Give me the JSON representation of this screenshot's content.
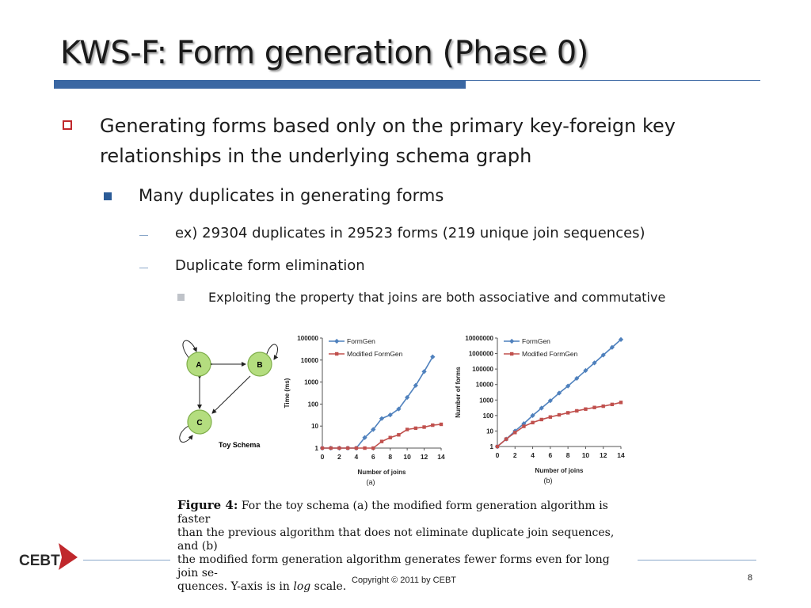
{
  "slide": {
    "title": "KWS-F: Form generation (Phase 0)",
    "bullets": {
      "b1_line1": "Generating forms based only on the primary key-foreign key",
      "b1_line2": "relationships in the underlying schema graph",
      "b2": "Many duplicates in generating forms",
      "b3": "ex) 29304 duplicates in 29523 forms (219 unique join sequences)",
      "b4": "Duplicate form elimination",
      "b5": "Exploiting the property that joins are both associative and commutative"
    },
    "footer": {
      "logo": "CEBT",
      "copyright": "Copyright © 2011 by CEBT",
      "page": "8"
    }
  },
  "figure": {
    "schema": {
      "node_a": "A",
      "node_b": "B",
      "node_c": "C",
      "label": "Toy Schema"
    },
    "caption": {
      "bold": "Figure 4:",
      "line1": "For the toy schema (a) the modified form generation algorithm is faster",
      "line2": "than the previous algorithm that does not eliminate duplicate join sequences, and (b)",
      "line3": "the modified form generation algorithm generates fewer forms even for long join se-",
      "line4_a": "quences. Y-axis is in",
      "line4_log": "log",
      "line4_b": "scale."
    }
  },
  "chart_data": [
    {
      "type": "line",
      "panel_label": "(a)",
      "xlabel": "Number of joins",
      "ylabel": "Time (ms)",
      "yscale": "log",
      "ylim": [
        1,
        100000
      ],
      "xlim": [
        0,
        14
      ],
      "xticks": [
        "0",
        "2",
        "4",
        "6",
        "8",
        "10",
        "12",
        "14"
      ],
      "yticks": [
        "1",
        "10",
        "100",
        "1000",
        "10000",
        "100000"
      ],
      "legend": "top-left",
      "series": [
        {
          "name": "FormGen",
          "color": "#4f81bd",
          "x": [
            0,
            1,
            2,
            3,
            4,
            5,
            6,
            7,
            8,
            9,
            10,
            11,
            12,
            13,
            14
          ],
          "values": [
            1,
            1,
            1,
            1,
            1,
            3,
            7,
            22,
            32,
            60,
            200,
            700,
            3000,
            14000,
            null
          ]
        },
        {
          "name": "Modified FormGen",
          "color": "#c0504d",
          "x": [
            0,
            1,
            2,
            3,
            4,
            5,
            6,
            7,
            8,
            9,
            10,
            11,
            12,
            13,
            14
          ],
          "values": [
            1,
            1,
            1,
            1,
            1,
            1,
            1,
            2,
            3,
            4,
            7,
            8,
            9,
            11,
            12
          ]
        }
      ]
    },
    {
      "type": "line",
      "panel_label": "(b)",
      "xlabel": "Number of joins",
      "ylabel": "Number of forms",
      "yscale": "log",
      "ylim": [
        1,
        10000000
      ],
      "xlim": [
        0,
        14
      ],
      "xticks": [
        "0",
        "2",
        "4",
        "6",
        "8",
        "10",
        "12",
        "14"
      ],
      "yticks": [
        "1",
        "10",
        "100",
        "1000",
        "10000",
        "100000",
        "1000000",
        "10000000"
      ],
      "legend": "top-left",
      "series": [
        {
          "name": "FormGen",
          "color": "#4f81bd",
          "x": [
            0,
            1,
            2,
            3,
            4,
            5,
            6,
            7,
            8,
            9,
            10,
            11,
            12,
            13,
            14
          ],
          "values": [
            1,
            3,
            10,
            30,
            100,
            300,
            900,
            2800,
            8000,
            25000,
            80000,
            250000,
            800000,
            2500000,
            8000000
          ]
        },
        {
          "name": "Modified FormGen",
          "color": "#c0504d",
          "x": [
            0,
            1,
            2,
            3,
            4,
            5,
            6,
            7,
            8,
            9,
            10,
            11,
            12,
            13,
            14
          ],
          "values": [
            1,
            3,
            8,
            20,
            35,
            55,
            80,
            110,
            150,
            200,
            260,
            330,
            400,
            520,
            700
          ]
        }
      ]
    }
  ]
}
